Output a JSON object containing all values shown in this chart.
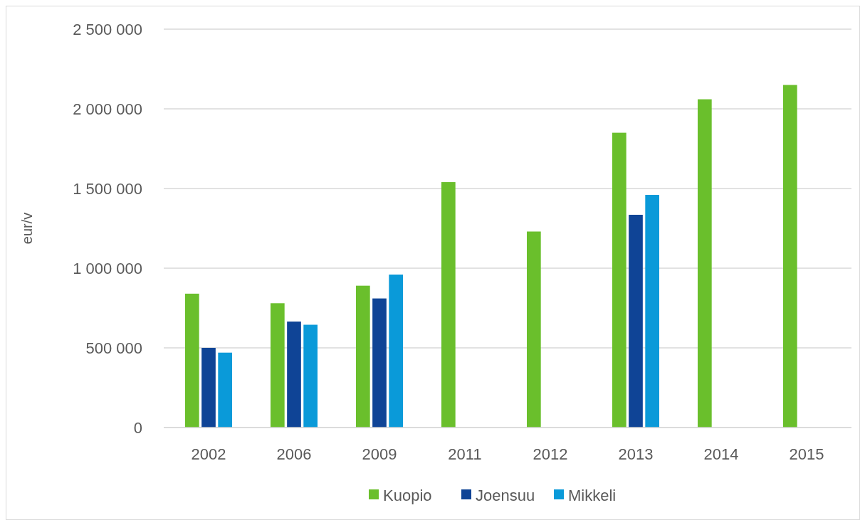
{
  "chart_data": {
    "type": "bar",
    "ylabel": "eur/v",
    "categories": [
      "2002",
      "2006",
      "2009",
      "2011",
      "2012",
      "2013",
      "2014",
      "2015"
    ],
    "series": [
      {
        "name": "Kuopio",
        "color": "#6abf2c",
        "values": [
          840000,
          780000,
          890000,
          1540000,
          1230000,
          1850000,
          2060000,
          2150000
        ]
      },
      {
        "name": "Joensuu",
        "color": "#0f4496",
        "values": [
          500000,
          665000,
          810000,
          null,
          null,
          1335000,
          null,
          null
        ]
      },
      {
        "name": "Mikkeli",
        "color": "#0a9ad9",
        "values": [
          470000,
          645000,
          960000,
          null,
          null,
          1460000,
          null,
          null
        ]
      }
    ],
    "ylim": [
      0,
      2500000
    ],
    "yticks": [
      {
        "value": 0,
        "label": "0"
      },
      {
        "value": 500000,
        "label": "500 000"
      },
      {
        "value": 1000000,
        "label": "1 000 000"
      },
      {
        "value": 1500000,
        "label": "1 500 000"
      },
      {
        "value": 2000000,
        "label": "2 000 000"
      },
      {
        "value": 2500000,
        "label": "2 500 000"
      }
    ],
    "grid": "y",
    "legend": "bottom"
  }
}
